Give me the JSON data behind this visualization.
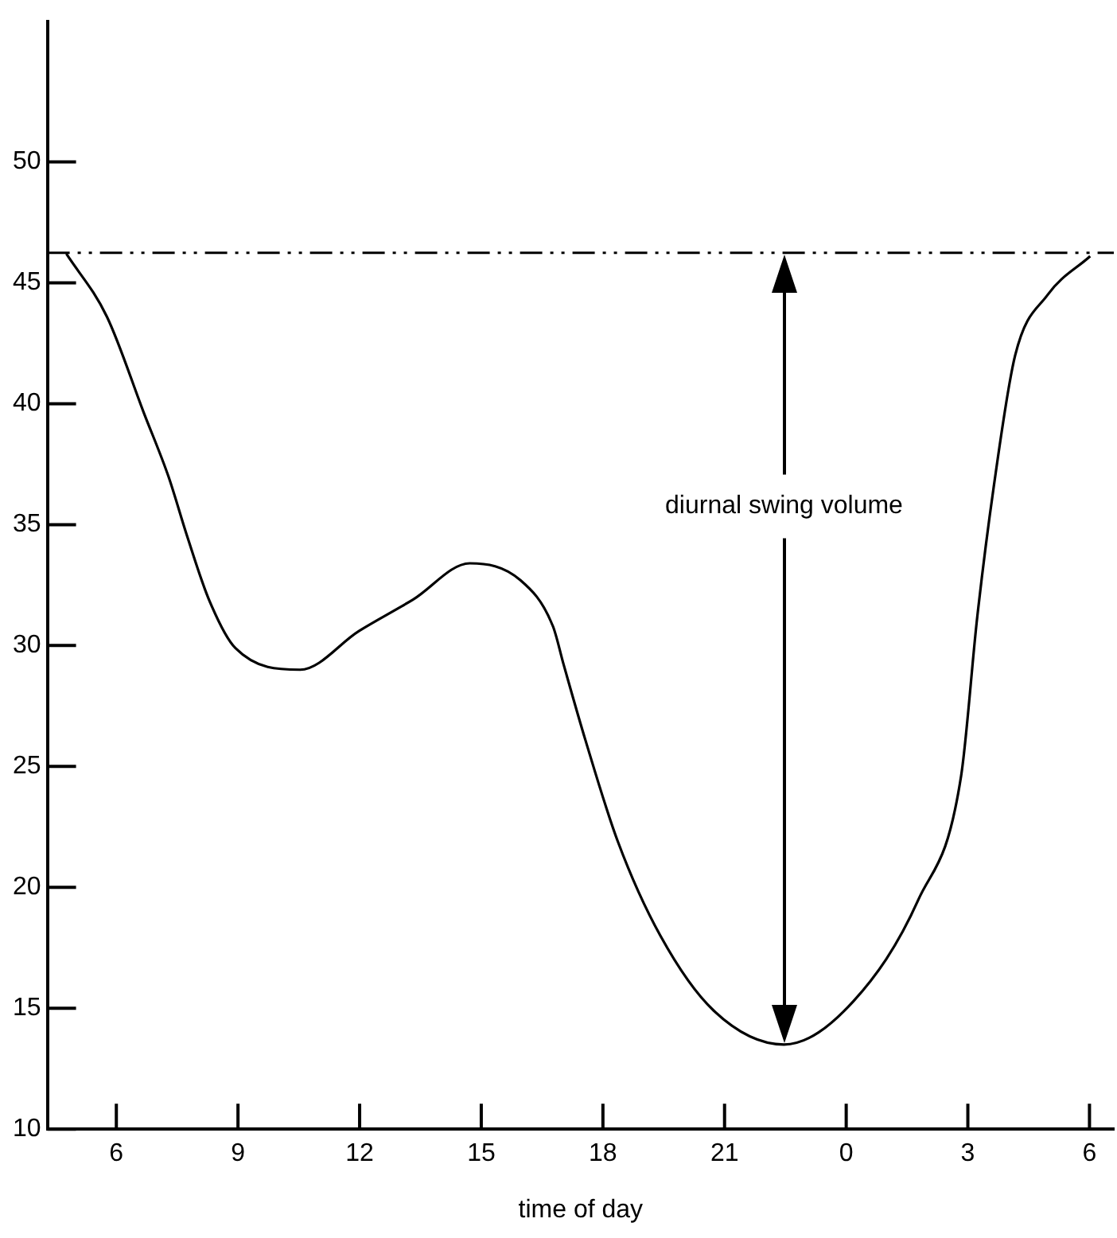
{
  "chart_data": {
    "type": "line",
    "xlabel": "time of day",
    "x": [
      "--01-01T04:46",
      "--01-01T05:46",
      "--01-01T06:41",
      "--01-01T07:17",
      "--01-01T07:45",
      "--01-01T08:17",
      "--01-01T08:56",
      "--01-01T10:32",
      "--01-01T11:59",
      "--01-01T13:19",
      "--01-01T14:43",
      "--01-01T15:58",
      "--01-01T16:46",
      "--01-01T17:02",
      "--01-01T17:34",
      "--01-01T18:22",
      "--01-01T19:25",
      "--01-01T20:44",
      "--01-01T22:28",
      "--01-02T00:11",
      "--01-02T01:47",
      "--01-02T02:50",
      "--01-02T03:14",
      "--01-02T03:38",
      "--01-02T04:10",
      "--01-02T04:58",
      "--01-02T06:01"
    ],
    "series": [
      {
        "color": "#000000",
        "values": [
          46.2,
          43.6,
          39.6,
          37.0,
          34.5,
          31.9,
          29.9,
          29.0,
          30.6,
          31.9,
          33.4,
          32.7,
          30.8,
          29.2,
          26.1,
          21.9,
          18.0,
          14.9,
          13.5,
          15.3,
          19.5,
          24.6,
          31.2,
          36.5,
          42.0,
          44.5,
          46.1
        ]
      }
    ],
    "xlim": [
      "--01-01T04:18",
      "--01-02T06:36"
    ],
    "xticks": [
      {
        "value": "--01-01T06:00",
        "label": "6"
      },
      {
        "value": "--01-01T09:00",
        "label": "9"
      },
      {
        "value": "--01-01T12:00",
        "label": "12"
      },
      {
        "value": "--01-01T15:00",
        "label": "15"
      },
      {
        "value": "--01-01T18:00",
        "label": "18"
      },
      {
        "value": "--01-01T21:00",
        "label": "21"
      },
      {
        "value": "--01-02T00:00",
        "label": "0"
      },
      {
        "value": "--01-02T03:00",
        "label": "3"
      },
      {
        "value": "--01-02T06:00",
        "label": "6"
      }
    ],
    "ylim": [
      10,
      55.8
    ],
    "yticks": [
      10,
      15,
      20,
      25,
      30,
      35,
      40,
      45,
      50
    ],
    "ref_lines": [
      {
        "axis": "y",
        "value": 46.24,
        "line_style": "dashed",
        "color": "#000000"
      }
    ],
    "annotations": [
      "diurnal swing volume"
    ],
    "grid": false,
    "legend": false
  }
}
